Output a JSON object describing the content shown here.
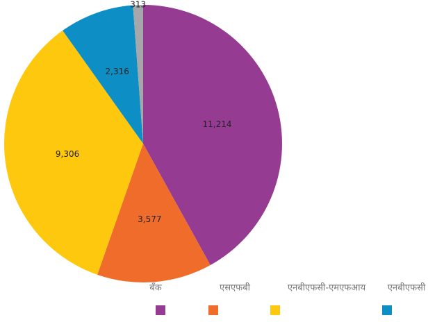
{
  "chart_data": {
    "type": "pie",
    "categories": [
      "बॅंक",
      "एसएफबी",
      "एनबीएफसी-एमएफआय",
      "एनबीएफसी",
      null
    ],
    "values": [
      11214,
      3577,
      9306,
      2316,
      313
    ],
    "value_labels": [
      "11,214",
      "3,577",
      "9,306",
      "2,316",
      "313"
    ],
    "colors": [
      "#953b92",
      "#f06c2a",
      "#fdc80d",
      "#0d8ec4",
      "#a5a7aa"
    ]
  }
}
